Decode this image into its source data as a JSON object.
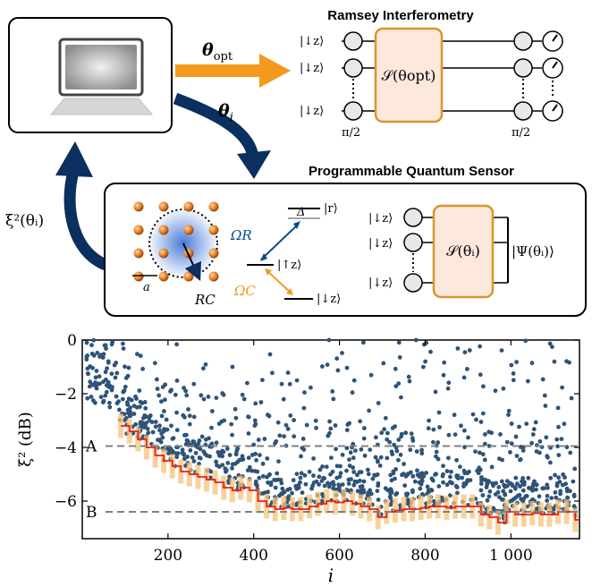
{
  "diagram": {
    "ramsey_title": "Ramsey Interferometry",
    "sensor_title": "Programmable Quantum Sensor",
    "theta_opt_label": "θ",
    "theta_opt_sub": "opt",
    "theta_i_label": "θ",
    "theta_i_sub": "i",
    "xi_label": "ξ²(θᵢ)",
    "ket_down": "|↓z⟩",
    "ket_up": "|↑z⟩",
    "ket_r": "|r⟩",
    "s_opt": "𝒮(θopt)",
    "s_i": "𝒮(θᵢ)",
    "psi": "|Ψ(θᵢ)⟩",
    "half_pi": "π/2",
    "omega_r": "ΩR",
    "omega_c": "ΩC",
    "delta": "Δ",
    "lattice_a": "a",
    "rc": "RC",
    "colors": {
      "navy": "#0b2f5e",
      "orange": "#f39a1e",
      "gate_fill": "#fde8dc",
      "gate_stroke": "#d9962a",
      "atom": "#d9721c",
      "blue_glow": "#3f74d6"
    }
  },
  "chart_data": {
    "type": "scatter",
    "xlabel": "i",
    "ylabel": "ξ² (dB)",
    "xlim": [
      0,
      1160
    ],
    "ylim": [
      -7.4,
      0
    ],
    "xticks": [
      200,
      400,
      600,
      800,
      1000
    ],
    "xtick_labels": [
      "200",
      "400",
      "600",
      "800",
      "1 000"
    ],
    "yticks": [
      0,
      -2,
      -4,
      -6
    ],
    "ytick_labels": [
      "0",
      "−2",
      "−4",
      "−6"
    ],
    "reference_lines": [
      {
        "label": "A",
        "y": -3.95
      },
      {
        "label": "B",
        "y": -6.4
      }
    ],
    "series": [
      {
        "kind": "running_min",
        "color": "#e8201a",
        "band_color": "#f7c37a",
        "x": [
          90,
          110,
          130,
          150,
          170,
          190,
          210,
          230,
          250,
          270,
          290,
          310,
          330,
          350,
          370,
          390,
          410,
          430,
          450,
          470,
          490,
          510,
          530,
          550,
          570,
          590,
          610,
          630,
          650,
          670,
          690,
          710,
          730,
          750,
          770,
          790,
          810,
          830,
          850,
          870,
          890,
          910,
          930,
          950,
          970,
          990,
          1010,
          1030,
          1050,
          1070,
          1090,
          1110,
          1130,
          1150
        ],
        "y": [
          -3.2,
          -3.4,
          -3.7,
          -4.0,
          -4.3,
          -4.5,
          -4.7,
          -4.9,
          -5.0,
          -5.1,
          -5.2,
          -5.3,
          -5.5,
          -5.6,
          -5.5,
          -5.6,
          -6.0,
          -6.2,
          -6.3,
          -6.25,
          -6.3,
          -6.3,
          -6.2,
          -6.1,
          -6.0,
          -6.05,
          -6.0,
          -6.1,
          -6.2,
          -6.3,
          -6.6,
          -6.4,
          -6.35,
          -6.3,
          -6.3,
          -6.25,
          -6.2,
          -6.2,
          -6.25,
          -6.2,
          -6.2,
          -6.2,
          -6.5,
          -6.6,
          -6.8,
          -6.4,
          -6.5,
          -6.5,
          -6.45,
          -6.5,
          -6.5,
          -6.4,
          -6.4,
          -6.7
        ]
      }
    ]
  }
}
